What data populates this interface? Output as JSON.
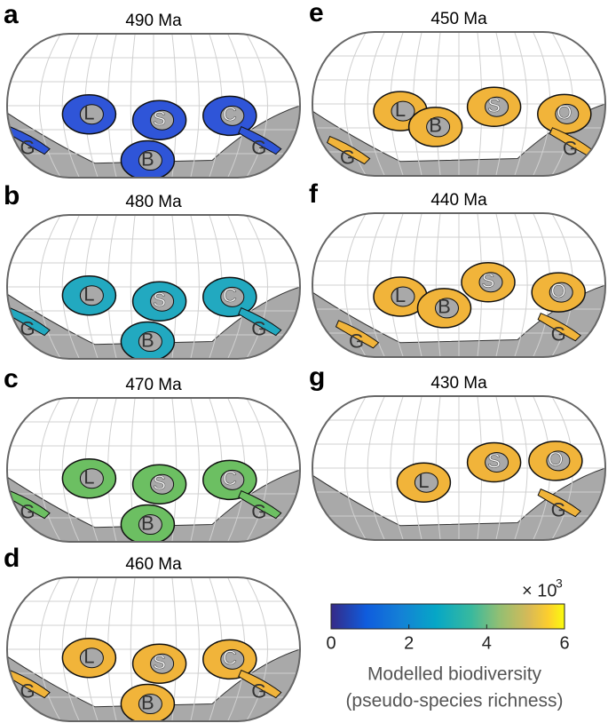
{
  "panels": [
    {
      "letter": "a",
      "age": "490 Ma",
      "labels": [
        "L",
        "S",
        "C",
        "G",
        "B",
        "G"
      ]
    },
    {
      "letter": "b",
      "age": "480 Ma",
      "labels": [
        "L",
        "S",
        "C",
        "G",
        "B",
        "G"
      ]
    },
    {
      "letter": "c",
      "age": "470 Ma",
      "labels": [
        "L",
        "S",
        "C",
        "G",
        "B",
        "G"
      ]
    },
    {
      "letter": "d",
      "age": "460 Ma",
      "labels": [
        "L",
        "S",
        "C",
        "G",
        "B",
        "G"
      ]
    },
    {
      "letter": "e",
      "age": "450 Ma",
      "labels": [
        "L",
        "B",
        "S",
        "O",
        "G",
        "G"
      ]
    },
    {
      "letter": "f",
      "age": "440 Ma",
      "labels": [
        "L",
        "B",
        "S",
        "O",
        "G",
        "G"
      ]
    },
    {
      "letter": "g",
      "age": "430 Ma",
      "labels": [
        "L",
        "S",
        "O",
        "G"
      ]
    }
  ],
  "colorbar": {
    "lim": [
      0,
      6
    ],
    "ticks": [
      0,
      2,
      4,
      6
    ],
    "multiplier": "× 10",
    "exponent": "3",
    "label": [
      "Modelled biodiversity",
      "(pseudo-species richness)"
    ]
  }
}
